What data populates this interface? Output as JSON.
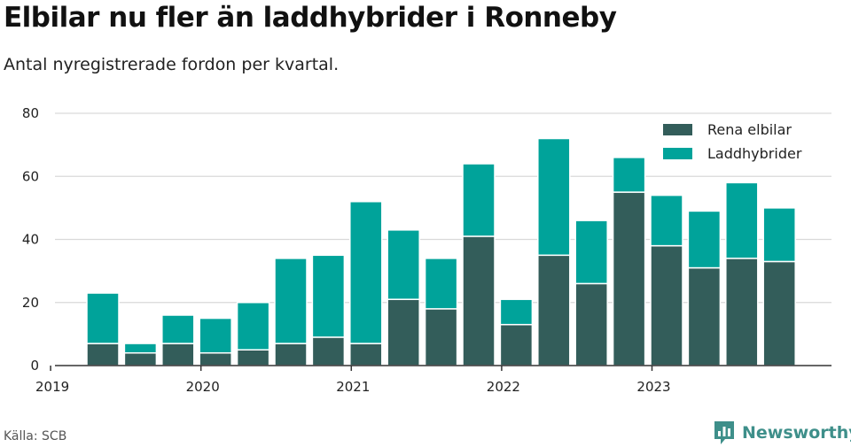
{
  "title": "Elbilar nu fler än laddhybrider i Ronneby",
  "subtitle": "Antal nyregistrerade fordon per kvartal.",
  "source": "Källa: SCB",
  "brand": {
    "name": "Newsworthy",
    "color": "#3e8f8a",
    "icon": "newsworthy-bar-chart-icon"
  },
  "chart_data": {
    "type": "bar",
    "stacked": true,
    "categories": [
      "2019 Q2",
      "2019 Q3",
      "2019 Q4",
      "2020 Q1",
      "2020 Q2",
      "2020 Q3",
      "2020 Q4",
      "2021 Q1",
      "2021 Q2",
      "2021 Q3",
      "2021 Q4",
      "2022 Q1",
      "2022 Q2",
      "2022 Q3",
      "2022 Q4",
      "2023 Q1",
      "2023 Q2",
      "2023 Q3",
      "2023 Q4"
    ],
    "series": [
      {
        "name": "Rena elbilar",
        "color": "#335d5a",
        "values": [
          7,
          4,
          7,
          4,
          5,
          7,
          9,
          7,
          21,
          18,
          41,
          13,
          35,
          26,
          55,
          38,
          31,
          34,
          33
        ]
      },
      {
        "name": "Laddhybrider",
        "color": "#00a39a",
        "values": [
          16,
          3,
          9,
          11,
          15,
          27,
          26,
          45,
          22,
          16,
          23,
          8,
          37,
          20,
          11,
          16,
          18,
          24,
          17
        ]
      }
    ],
    "x_ticks": [
      "2019",
      "2020",
      "2021",
      "2022",
      "2023"
    ],
    "y_ticks": [
      0,
      20,
      40,
      60,
      80
    ],
    "ylim": [
      0,
      80
    ],
    "grid": true,
    "legend_position": "top-right",
    "xlabel": "",
    "ylabel": ""
  }
}
